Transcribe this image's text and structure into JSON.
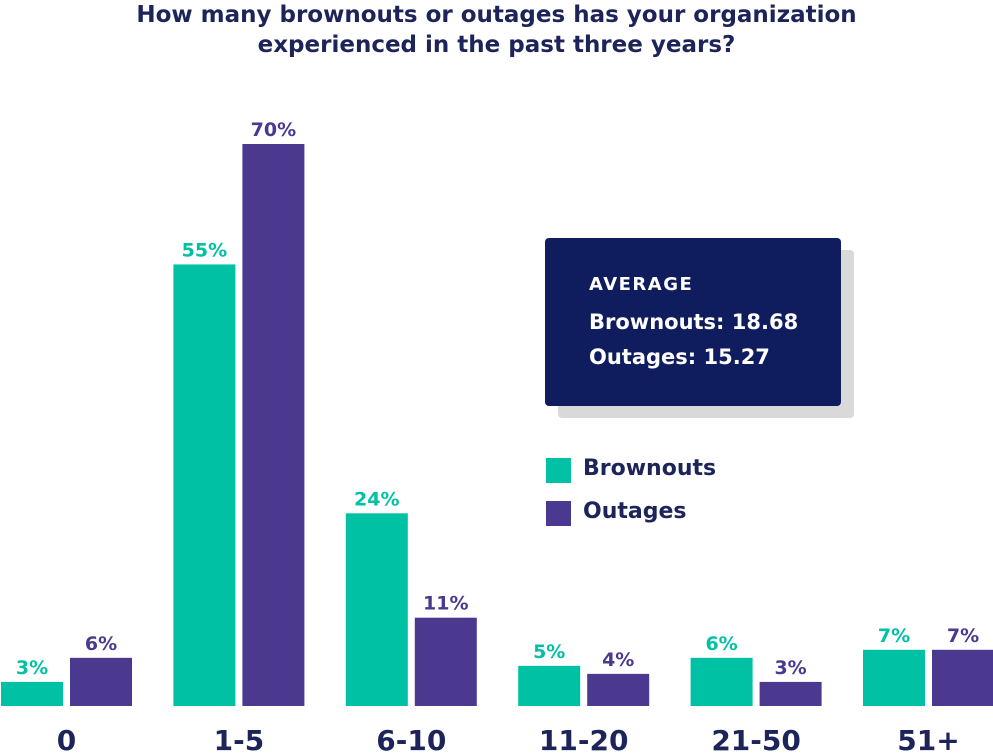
{
  "title": {
    "line1": "How many brownouts or outages has your organization",
    "line2": "experienced in the past three years?"
  },
  "colors": {
    "brownouts": "#00c1a4",
    "outages": "#4b3990",
    "title": "#1c2459",
    "info_box": "#0f1c5e"
  },
  "info_box": {
    "heading": "AVERAGE",
    "line1": "Brownouts: 18.68",
    "line2": "Outages: 15.27"
  },
  "legend": [
    {
      "label": "Brownouts"
    },
    {
      "label": "Outages"
    }
  ],
  "chart_data": {
    "type": "bar",
    "categories": [
      "0",
      "1-5",
      "6-10",
      "11-20",
      "21-50",
      "51+"
    ],
    "series": [
      {
        "name": "Brownouts",
        "values": [
          3,
          55,
          24,
          5,
          6,
          7
        ],
        "labels": [
          "3%",
          "55%",
          "24%",
          "5%",
          "6%",
          "7%"
        ]
      },
      {
        "name": "Outages",
        "values": [
          6,
          70,
          11,
          4,
          3,
          7
        ],
        "labels": [
          "6%",
          "70%",
          "11%",
          "4%",
          "3%",
          "7%"
        ]
      }
    ],
    "ylim": [
      0,
      70
    ],
    "grid": false,
    "legend_position": "right"
  }
}
